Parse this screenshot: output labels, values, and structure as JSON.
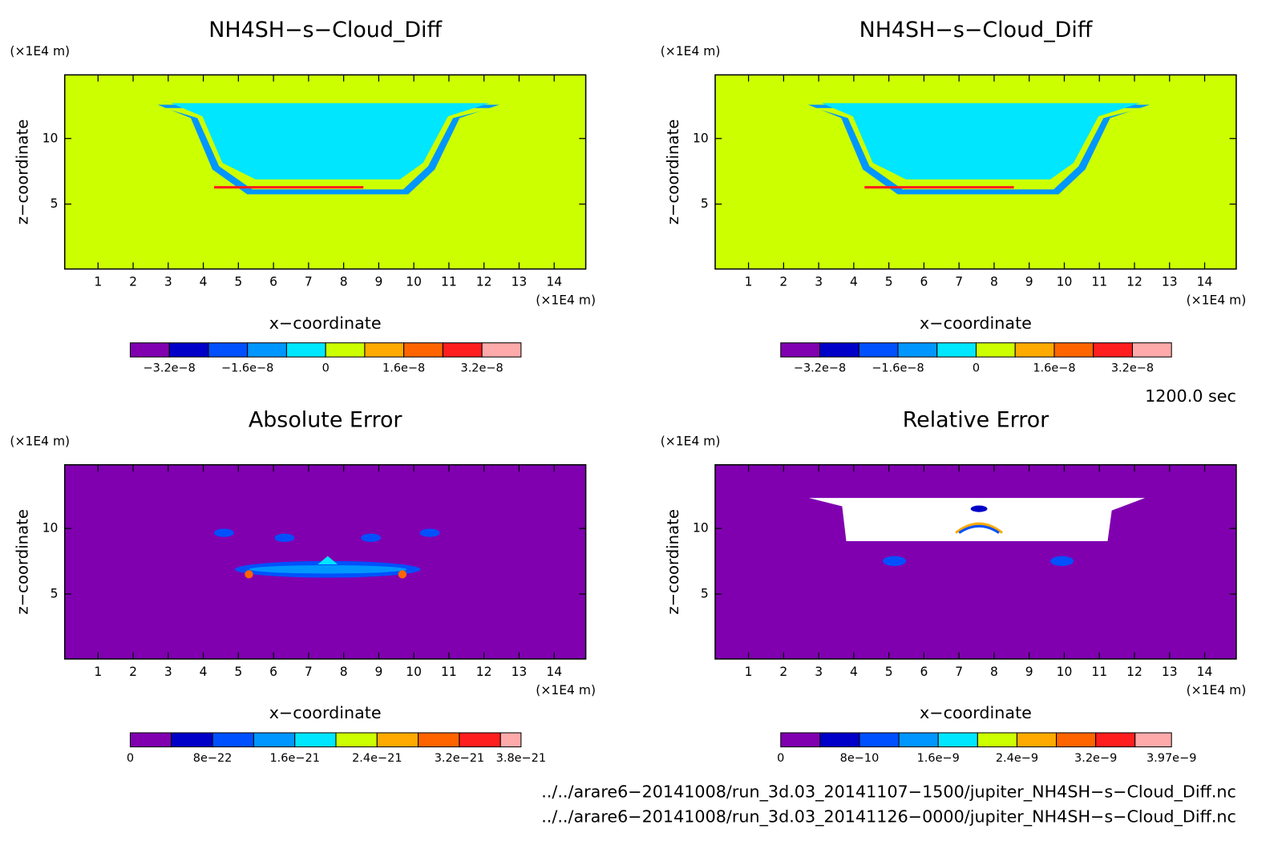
{
  "chart_data": [
    {
      "type": "contour",
      "title": "NH4SH−s−Cloud_Diff",
      "xlabel": "x−coordinate",
      "ylabel": "z−coordinate",
      "xunit": "(×1E4 m)",
      "yunit": "(×1E4 m)",
      "xlim": [
        0.05,
        14.9
      ],
      "ylim": [
        0.05,
        14.85
      ],
      "xticks": [
        1,
        2,
        3,
        4,
        5,
        6,
        7,
        8,
        9,
        10,
        11,
        12,
        13,
        14
      ],
      "yticks": [
        5,
        10
      ],
      "colorbar": {
        "colors": [
          "#8000b0",
          "#0000c8",
          "#0050ff",
          "#0096ff",
          "#00e6ff",
          "#ccff00",
          "#ffaa00",
          "#ff6400",
          "#ff1e1e",
          "#ffaaaa"
        ],
        "levels": [
          -4e-08,
          -3.2e-08,
          -2.4e-08,
          -1.6e-08,
          -8e-09,
          0,
          8e-09,
          1.6e-08,
          2.4e-08,
          3.2e-08,
          4e-08
        ],
        "ticks": [
          {
            "value": -3.2e-08,
            "label": "−3.2e−8"
          },
          {
            "value": -1.6e-08,
            "label": "−1.6e−8"
          },
          0,
          {
            "value": 1.6e-08,
            "label": "1.6e−8"
          },
          {
            "value": 3.2e-08,
            "label": "3.2e−8"
          }
        ]
      }
    },
    {
      "type": "contour",
      "title": "NH4SH−s−Cloud_Diff",
      "xlabel": "x−coordinate",
      "ylabel": "z−coordinate",
      "xunit": "(×1E4 m)",
      "yunit": "(×1E4 m)",
      "xlim": [
        0.05,
        14.9
      ],
      "ylim": [
        0.05,
        14.85
      ],
      "xticks": [
        1,
        2,
        3,
        4,
        5,
        6,
        7,
        8,
        9,
        10,
        11,
        12,
        13,
        14
      ],
      "yticks": [
        5,
        10
      ],
      "colorbar": {
        "colors": [
          "#8000b0",
          "#0000c8",
          "#0050ff",
          "#0096ff",
          "#00e6ff",
          "#ccff00",
          "#ffaa00",
          "#ff6400",
          "#ff1e1e",
          "#ffaaaa"
        ],
        "levels": [
          -4e-08,
          -3.2e-08,
          -2.4e-08,
          -1.6e-08,
          -8e-09,
          0,
          8e-09,
          1.6e-08,
          2.4e-08,
          3.2e-08,
          4e-08
        ],
        "ticks": [
          {
            "value": -3.2e-08,
            "label": "−3.2e−8"
          },
          {
            "value": -1.6e-08,
            "label": "−1.6e−8"
          },
          0,
          {
            "value": 1.6e-08,
            "label": "1.6e−8"
          },
          {
            "value": 3.2e-08,
            "label": "3.2e−8"
          }
        ]
      }
    },
    {
      "type": "contour",
      "title": "Absolute Error",
      "xlabel": "x−coordinate",
      "ylabel": "z−coordinate",
      "xunit": "(×1E4 m)",
      "yunit": "(×1E4 m)",
      "xlim": [
        0.05,
        14.9
      ],
      "ylim": [
        0.05,
        14.85
      ],
      "xticks": [
        1,
        2,
        3,
        4,
        5,
        6,
        7,
        8,
        9,
        10,
        11,
        12,
        13,
        14
      ],
      "yticks": [
        5,
        10
      ],
      "colorbar": {
        "colors": [
          "#8000b0",
          "#0000c8",
          "#0050ff",
          "#0096ff",
          "#00e6ff",
          "#ccff00",
          "#ffaa00",
          "#ff6400",
          "#ff1e1e",
          "#ffaaaa"
        ],
        "levels": [
          0,
          4e-22,
          8e-22,
          1.2e-21,
          1.6e-21,
          2e-21,
          2.4e-21,
          2.8e-21,
          3.2e-21,
          3.6e-21,
          3.8e-21
        ],
        "ticks": [
          0,
          {
            "value": 8e-22,
            "label": "8e−22"
          },
          {
            "value": 1.6e-21,
            "label": "1.6e−21"
          },
          {
            "value": 2.4e-21,
            "label": "2.4e−21"
          },
          {
            "value": 3.2e-21,
            "label": "3.2e−21"
          },
          {
            "value": 3.8e-21,
            "label": "3.8e−21"
          }
        ]
      }
    },
    {
      "type": "contour",
      "title": "Relative Error",
      "xlabel": "x−coordinate",
      "ylabel": "z−coordinate",
      "xunit": "(×1E4 m)",
      "yunit": "(×1E4 m)",
      "xlim": [
        0.05,
        14.9
      ],
      "ylim": [
        0.05,
        14.85
      ],
      "xticks": [
        1,
        2,
        3,
        4,
        5,
        6,
        7,
        8,
        9,
        10,
        11,
        12,
        13,
        14
      ],
      "yticks": [
        5,
        10
      ],
      "colorbar": {
        "colors": [
          "#8000b0",
          "#0000c8",
          "#0050ff",
          "#0096ff",
          "#00e6ff",
          "#ccff00",
          "#ffaa00",
          "#ff6400",
          "#ff1e1e",
          "#ffaaaa"
        ],
        "levels": [
          0,
          4e-10,
          8e-10,
          1.2e-09,
          1.6e-09,
          2e-09,
          2.4e-09,
          2.8e-09,
          3.2e-09,
          3.6e-09,
          3.97e-09
        ],
        "ticks": [
          0,
          {
            "value": 8e-10,
            "label": "8e−10"
          },
          {
            "value": 1.6e-09,
            "label": "1.6e−9"
          },
          {
            "value": 2.4e-09,
            "label": "2.4e−9"
          },
          {
            "value": 3.2e-09,
            "label": "3.2e−9"
          },
          {
            "value": 3.97e-09,
            "label": "3.97e−9"
          }
        ]
      }
    }
  ],
  "time_label": "1200.0 sec",
  "files": [
    "../../arare6−20141008/run_3d.03_20141107−1500/jupiter_NH4SH−s−Cloud_Diff.nc",
    "../../arare6−20141008/run_3d.03_20141126−0000/jupiter_NH4SH−s−Cloud_Diff.nc"
  ]
}
